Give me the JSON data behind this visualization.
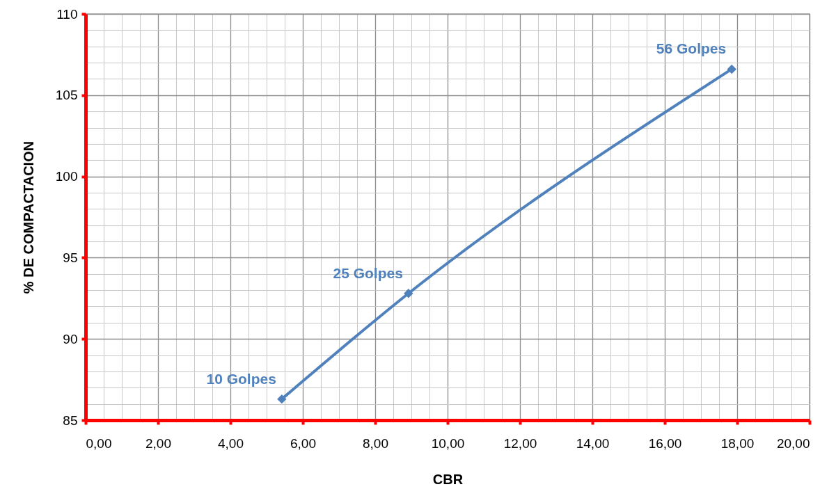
{
  "chart_data": {
    "type": "line",
    "xlabel": "CBR",
    "ylabel": "% DE COMPACTACION",
    "x": [
      5.42,
      8.92,
      17.85
    ],
    "series": [
      {
        "color": "#4f81bd",
        "values": [
          86.3,
          92.8,
          106.6
        ]
      }
    ],
    "xlim": [
      0,
      20
    ],
    "ylim": [
      85,
      110
    ],
    "xticks": [
      {
        "value": 0,
        "label": "0,00"
      },
      {
        "value": 2,
        "label": "2,00"
      },
      {
        "value": 4,
        "label": "4,00"
      },
      {
        "value": 6,
        "label": "6,00"
      },
      {
        "value": 8,
        "label": "8,00"
      },
      {
        "value": 10,
        "label": "10,00"
      },
      {
        "value": 12,
        "label": "12,00"
      },
      {
        "value": 14,
        "label": "14,00"
      },
      {
        "value": 16,
        "label": "16,00"
      },
      {
        "value": 18,
        "label": "18,00"
      },
      {
        "value": 20,
        "label": "20,00"
      }
    ],
    "yticks": [
      85,
      90,
      95,
      100,
      105,
      110
    ],
    "annotations": [
      {
        "text": "10 Golpes",
        "x": 5.42,
        "y": 86.3
      },
      {
        "text": "25 Golpes",
        "x": 8.92,
        "y": 92.8
      },
      {
        "text": "56 Golpes",
        "x": 17.85,
        "y": 106.6
      }
    ],
    "grid": true,
    "marker": "diamond",
    "line_style": "solid"
  }
}
